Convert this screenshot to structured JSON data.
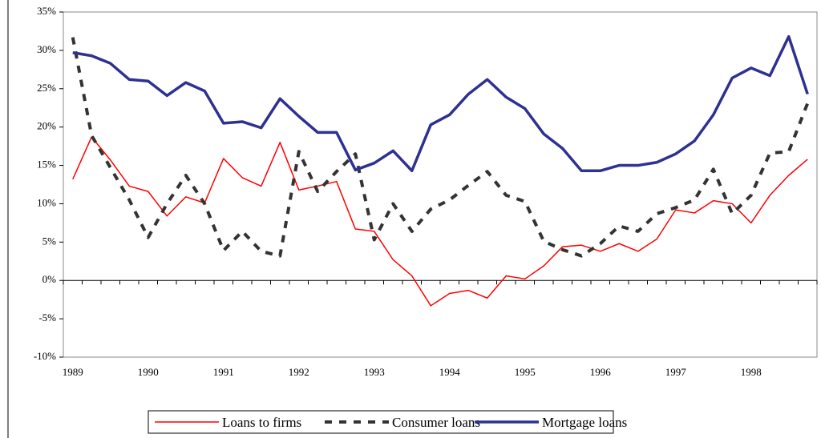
{
  "chart_data": {
    "type": "line",
    "categories": [
      "1989",
      null,
      null,
      null,
      "1990",
      null,
      null,
      null,
      "1991",
      null,
      null,
      null,
      "1992",
      null,
      null,
      null,
      "1993",
      null,
      null,
      null,
      "1994",
      null,
      null,
      null,
      "1995",
      null,
      null,
      null,
      "1996",
      null,
      null,
      null,
      "1997",
      null,
      null,
      null,
      "1998",
      null,
      null,
      null
    ],
    "series": [
      {
        "name": "Loans to firms",
        "color": "#ff0000",
        "style": "thin",
        "values": [
          13.2,
          18.7,
          15.7,
          12.3,
          11.6,
          8.4,
          10.9,
          10.1,
          15.9,
          13.4,
          12.3,
          18.0,
          11.8,
          12.3,
          12.9,
          6.7,
          6.4,
          2.7,
          0.6,
          -3.3,
          -1.7,
          -1.3,
          -2.3,
          0.6,
          0.2,
          1.9,
          4.4,
          4.6,
          3.8,
          4.8,
          3.8,
          5.4,
          9.2,
          8.8,
          10.4,
          10.0,
          7.5,
          11.1,
          13.7,
          15.8
        ]
      },
      {
        "name": "Consumer loans",
        "color": "#333333",
        "style": "dashed",
        "values": [
          31.7,
          18.9,
          14.7,
          10.5,
          5.6,
          10.0,
          13.7,
          10.0,
          3.9,
          6.4,
          3.8,
          3.2,
          16.8,
          11.6,
          14.2,
          16.5,
          5.3,
          10.0,
          6.4,
          9.3,
          10.5,
          12.4,
          14.2,
          11.1,
          10.3,
          5.1,
          4.0,
          3.2,
          4.8,
          7.1,
          6.4,
          8.7,
          9.5,
          10.5,
          14.5,
          8.7,
          11.1,
          16.6,
          16.8,
          23.1
        ]
      },
      {
        "name": "Mortgage loans",
        "color": "#2e3192",
        "style": "thick",
        "values": [
          29.7,
          29.3,
          28.3,
          26.2,
          26.0,
          24.1,
          25.8,
          24.7,
          20.5,
          20.7,
          19.9,
          23.7,
          21.4,
          19.3,
          19.3,
          14.4,
          15.3,
          16.9,
          14.3,
          20.3,
          21.6,
          24.3,
          26.2,
          23.9,
          22.4,
          19.1,
          17.2,
          14.3,
          14.3,
          15.0,
          15.0,
          15.4,
          16.5,
          18.2,
          21.6,
          26.4,
          27.7,
          26.7,
          31.8,
          24.3
        ]
      }
    ],
    "ylim": [
      -10,
      35
    ],
    "yticks": [
      {
        "value": -10,
        "label": "-10%"
      },
      {
        "value": -5,
        "label": "-5%"
      },
      {
        "value": 0,
        "label": "0%"
      },
      {
        "value": 5,
        "label": "5%"
      },
      {
        "value": 10,
        "label": "10%"
      },
      {
        "value": 15,
        "label": "15%"
      },
      {
        "value": 20,
        "label": "20%"
      },
      {
        "value": 25,
        "label": "25%"
      },
      {
        "value": 30,
        "label": "30%"
      },
      {
        "value": 35,
        "label": "35%"
      }
    ],
    "legend": "bottom"
  }
}
